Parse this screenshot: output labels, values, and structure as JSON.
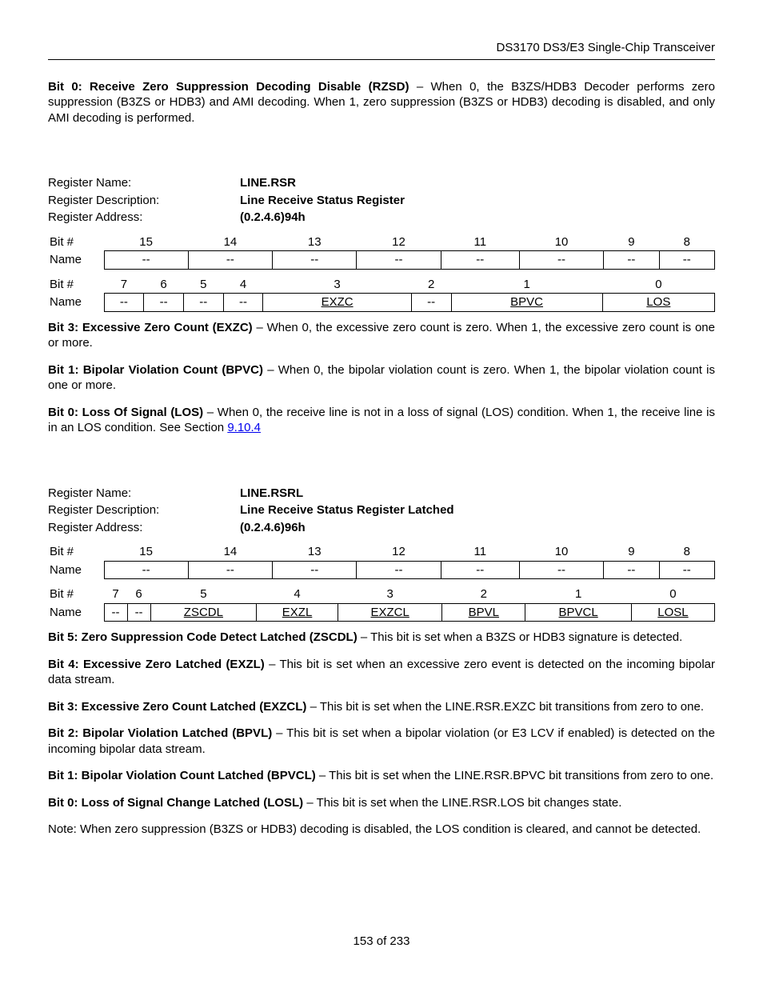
{
  "header": {
    "title": "DS3170 DS3/E3 Single-Chip Transceiver"
  },
  "intro": {
    "bold": "Bit 0: Receive Zero Suppression Decoding Disable (RZSD)",
    "rest": " – When 0, the B3ZS/HDB3 Decoder performs zero suppression (B3ZS or HDB3) and AMI decoding. When 1, zero suppression (B3ZS or HDB3) decoding is disabled, and only AMI decoding is performed."
  },
  "reg1": {
    "labels": {
      "name": "Register Name:",
      "desc": "Register Description:",
      "addr": "Register Address:"
    },
    "values": {
      "name": "LINE.RSR",
      "desc": "Line Receive Status Register",
      "addr": "(0.2.4.6)94h"
    },
    "table": {
      "bit_label": "Bit #",
      "name_label": "Name",
      "top_nums": [
        "15",
        "14",
        "13",
        "12",
        "11",
        "10",
        "9",
        "8"
      ],
      "top_names": [
        "--",
        "--",
        "--",
        "--",
        "--",
        "--",
        "--",
        "--"
      ],
      "top_under": [
        false,
        false,
        false,
        false,
        false,
        false,
        false,
        false
      ],
      "bot_nums": [
        "7",
        "6",
        "5",
        "4",
        "3",
        "2",
        "1",
        "0"
      ],
      "bot_names": [
        "--",
        "--",
        "--",
        "--",
        "EXZC",
        "--",
        "BPVC",
        "LOS"
      ],
      "bot_under": [
        false,
        false,
        false,
        false,
        true,
        false,
        true,
        true
      ]
    }
  },
  "reg1_desc": {
    "p1_bold": "Bit 3: Excessive Zero Count (EXZC)",
    "p1_rest": " – When 0, the excessive zero count is zero. When 1, the excessive zero count is one or more.",
    "p2_bold": "Bit 1: Bipolar Violation Count (BPVC)",
    "p2_rest": " – When 0, the bipolar violation count is zero. When 1, the bipolar violation count is one or more.",
    "p3_bold": "Bit 0: Loss Of Signal (LOS)",
    "p3_rest_a": " – When 0, the receive line is not in a loss of signal (LOS) condition. When 1, the receive line is in an LOS condition.  See Section ",
    "p3_link": "9.10.4"
  },
  "reg2": {
    "labels": {
      "name": "Register Name:",
      "desc": "Register Description:",
      "addr": "Register Address:"
    },
    "values": {
      "name": "LINE.RSRL",
      "desc": "Line Receive Status Register Latched",
      "addr": "(0.2.4.6)96h"
    },
    "table": {
      "bit_label": "Bit #",
      "name_label": "Name",
      "top_nums": [
        "15",
        "14",
        "13",
        "12",
        "11",
        "10",
        "9",
        "8"
      ],
      "top_names": [
        "--",
        "--",
        "--",
        "--",
        "--",
        "--",
        "--",
        "--"
      ],
      "top_under": [
        false,
        false,
        false,
        false,
        false,
        false,
        false,
        false
      ],
      "bot_nums": [
        "7",
        "6",
        "5",
        "4",
        "3",
        "2",
        "1",
        "0"
      ],
      "bot_names": [
        "--",
        "--",
        "ZSCDL",
        "EXZL",
        "EXZCL",
        "BPVL",
        "BPVCL",
        "LOSL"
      ],
      "bot_under": [
        false,
        false,
        true,
        true,
        true,
        true,
        true,
        true
      ]
    }
  },
  "reg2_desc": {
    "p1_bold": "Bit 5: Zero Suppression Code Detect Latched (ZSCDL)",
    "p1_rest": " – This bit is set when a B3ZS or HDB3 signature is detected.",
    "p2_bold": "Bit 4: Excessive Zero Latched (EXZL)",
    "p2_rest": " – This bit is set when an excessive zero event is detected on the incoming bipolar data stream.",
    "p3_bold": "Bit 3: Excessive Zero Count Latched (EXZCL)",
    "p3_rest": " – This bit is set when the LINE.RSR.EXZC bit transitions from zero to one.",
    "p4_bold": "Bit 2: Bipolar Violation Latched (BPVL)",
    "p4_rest": " – This bit is set when a bipolar violation (or E3 LCV if enabled) is detected on the incoming bipolar data stream.",
    "p5_bold": "Bit 1: Bipolar Violation Count Latched (BPVCL)",
    "p5_rest": " – This bit is set when the LINE.RSR.BPVC bit transitions from zero to one.",
    "p6_bold": "Bit 0: Loss of Signal Change Latched (LOSL)",
    "p6_rest": " – This bit is set when the LINE.RSR.LOS bit changes state.",
    "note": "Note: When zero suppression (B3ZS or HDB3) decoding is disabled, the LOS condition is cleared, and cannot be detected."
  },
  "footer": {
    "text": "153 of 233"
  }
}
